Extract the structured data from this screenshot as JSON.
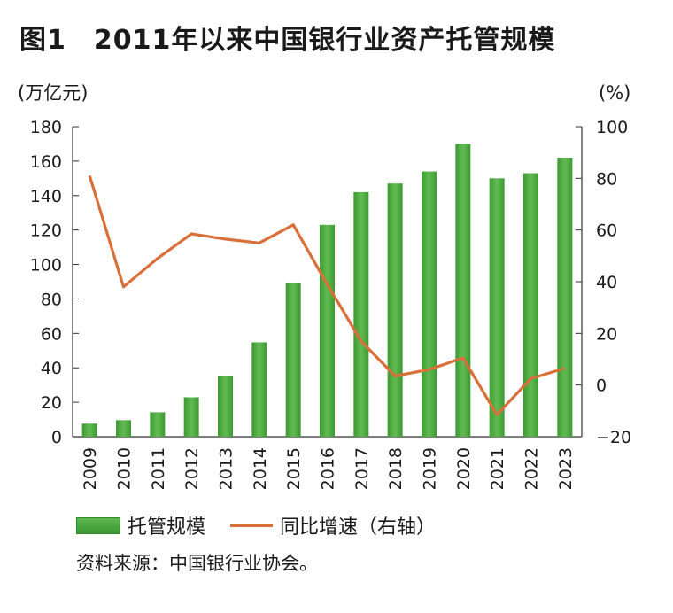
{
  "title": "图1　2011年以来中国银行业资产托管规模",
  "source": "资料来源：中国银行业协会。",
  "colors": {
    "bar": "#4aa83f",
    "line": "#d9703a"
  },
  "chart_data": {
    "type": "bar+line",
    "categories": [
      "2009",
      "2010",
      "2011",
      "2012",
      "2013",
      "2014",
      "2015",
      "2016",
      "2017",
      "2018",
      "2019",
      "2020",
      "2021",
      "2022",
      "2023"
    ],
    "left_axis": {
      "unit": "(万亿元)",
      "ylim": [
        0,
        180
      ],
      "ticks": [
        0,
        20,
        40,
        60,
        80,
        100,
        120,
        140,
        160,
        180
      ]
    },
    "right_axis": {
      "unit": "(%)",
      "ylim": [
        -20,
        100
      ],
      "ticks": [
        "−20",
        "0",
        "20",
        "40",
        "60",
        "80",
        "100"
      ],
      "tick_values": [
        -20,
        0,
        20,
        40,
        60,
        80,
        100
      ]
    },
    "series": [
      {
        "name": "托管规模",
        "type": "bar",
        "axis": "left",
        "values": [
          7.6,
          9.6,
          14.2,
          22.9,
          35.5,
          54.8,
          89,
          123,
          142,
          147,
          154,
          170,
          150,
          153,
          162
        ]
      },
      {
        "name": "同比增速（右轴）",
        "type": "line",
        "axis": "right",
        "values": [
          81,
          38,
          49,
          58.5,
          56.5,
          55,
          62,
          39,
          17,
          3.5,
          6,
          10.5,
          -11.5,
          2.5,
          6.5
        ]
      }
    ],
    "legend": "bottom"
  }
}
